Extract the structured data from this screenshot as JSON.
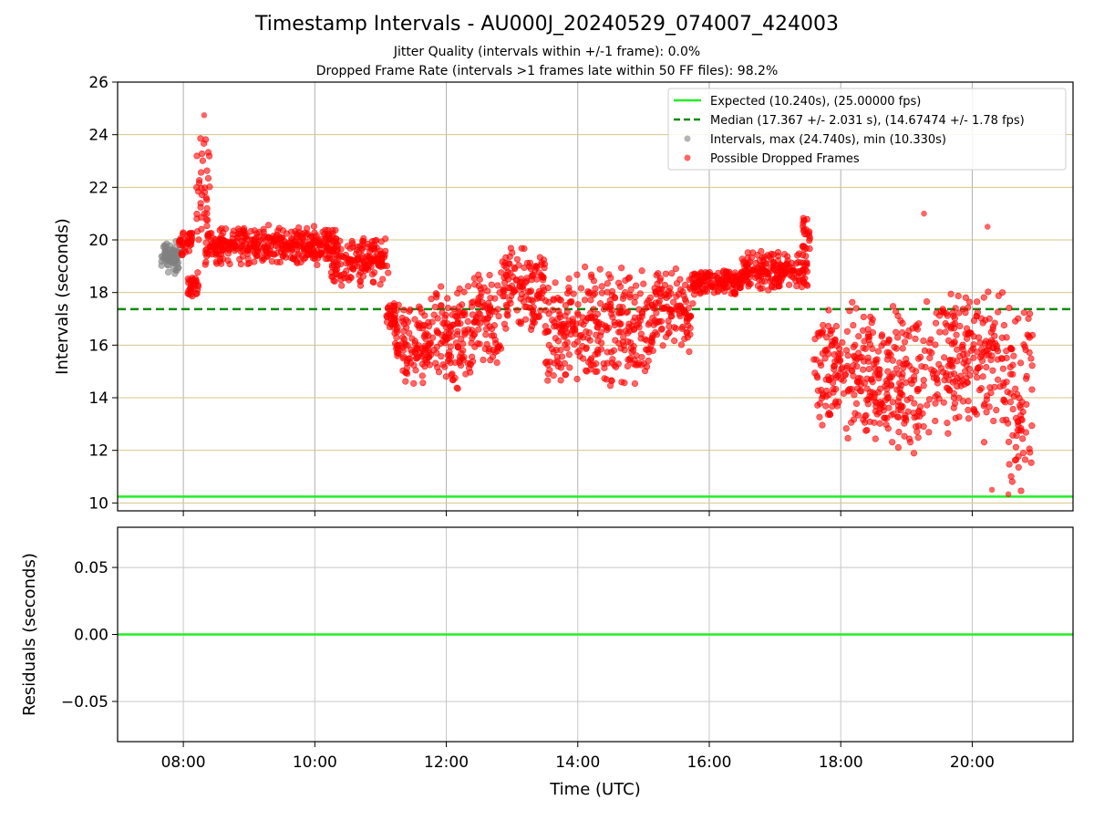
{
  "figure": {
    "title": "Timestamp Intervals - AU000J_20240529_074007_424003",
    "subtitle_1": "Jitter Quality (intervals within +/-1 frame): 0.0%",
    "subtitle_2": "Dropped Frame Rate (intervals >1 frames late within 50 FF files): 98.2%"
  },
  "chart_data": [
    {
      "type": "scatter",
      "xlabel": "",
      "ylabel": "Intervals (seconds)",
      "xlim": [
        "07:00",
        "21:32"
      ],
      "ylim": [
        9.7,
        26
      ],
      "yticks": [
        10,
        12,
        14,
        16,
        18,
        20,
        22,
        24,
        26
      ],
      "ytick_labels": [
        "10",
        "12",
        "14",
        "16",
        "18",
        "20",
        "22",
        "24",
        "26"
      ],
      "xticks": [
        "08:00",
        "10:00",
        "12:00",
        "14:00",
        "16:00",
        "18:00",
        "20:00"
      ],
      "grid": true,
      "legend_position": "top-right",
      "reference_lines": [
        {
          "name": "Expected (10.240s), (25.00000 fps)",
          "value": 10.24,
          "style": "solid",
          "color": "#22ee22"
        },
        {
          "name": "Median (17.367 +/- 2.031 s), (14.67474 +/- 1.78 fps)",
          "value": 17.367,
          "style": "dashed",
          "color": "#118811"
        }
      ],
      "series": [
        {
          "name": "Intervals, max (24.740s), min (10.330s)",
          "color": "#808080",
          "description_ranges": [
            {
              "x_start": "07:40",
              "x_end": "07:56",
              "y_min": 18.6,
              "y_max": 20.1
            }
          ]
        },
        {
          "name": "Possible Dropped Frames",
          "color": "#ff0000",
          "description_ranges": [
            {
              "x_start": "07:56",
              "x_end": "08:08",
              "y_min": 19.3,
              "y_max": 20.5
            },
            {
              "x_start": "08:04",
              "x_end": "08:14",
              "y_min": 17.8,
              "y_max": 18.8
            },
            {
              "x_start": "08:12",
              "x_end": "08:24",
              "y_min": 19.0,
              "y_max": 24.7
            },
            {
              "x_start": "08:20",
              "x_end": "10:20",
              "y_min": 19.0,
              "y_max": 20.6
            },
            {
              "x_start": "10:15",
              "x_end": "11:07",
              "y_min": 18.2,
              "y_max": 20.2
            },
            {
              "x_start": "11:05",
              "x_end": "11:15",
              "y_min": 16.4,
              "y_max": 17.8
            },
            {
              "x_start": "11:12",
              "x_end": "11:45",
              "y_min": 14.2,
              "y_max": 17.6
            },
            {
              "x_start": "11:45",
              "x_end": "12:25",
              "y_min": 14.1,
              "y_max": 18.5
            },
            {
              "x_start": "12:25",
              "x_end": "12:50",
              "y_min": 15.0,
              "y_max": 19.0
            },
            {
              "x_start": "12:50",
              "x_end": "13:30",
              "y_min": 16.4,
              "y_max": 19.9
            },
            {
              "x_start": "13:30",
              "x_end": "14:30",
              "y_min": 14.2,
              "y_max": 19.2
            },
            {
              "x_start": "14:30",
              "x_end": "15:10",
              "y_min": 14.1,
              "y_max": 19.3
            },
            {
              "x_start": "15:10",
              "x_end": "15:45",
              "y_min": 15.6,
              "y_max": 19.1
            },
            {
              "x_start": "15:45",
              "x_end": "16:30",
              "y_min": 17.8,
              "y_max": 19.0
            },
            {
              "x_start": "16:30",
              "x_end": "17:30",
              "y_min": 18.0,
              "y_max": 19.6
            },
            {
              "x_start": "17:25",
              "x_end": "17:32",
              "y_min": 19.5,
              "y_max": 21.0
            },
            {
              "x_start": "17:35",
              "x_end": "18:30",
              "y_min": 12.4,
              "y_max": 17.8
            },
            {
              "x_start": "18:30",
              "x_end": "19:30",
              "y_min": 11.6,
              "y_max": 17.8
            },
            {
              "x_start": "19:30",
              "x_end": "20:30",
              "y_min": 12.2,
              "y_max": 18.5
            },
            {
              "x_start": "20:30",
              "x_end": "20:55",
              "y_min": 10.3,
              "y_max": 17.8
            }
          ],
          "outliers": [
            {
              "x": "19:16",
              "y": 21.0
            },
            {
              "x": "20:14",
              "y": 20.5
            },
            {
              "x": "20:18",
              "y": 10.5
            },
            {
              "x": "20:33",
              "y": 10.33
            },
            {
              "x": "08:19",
              "y": 24.74
            }
          ]
        }
      ]
    },
    {
      "type": "line",
      "xlabel": "Time (UTC)",
      "ylabel": "Residuals (seconds)",
      "xlim": [
        "07:00",
        "21:32"
      ],
      "ylim": [
        -0.08,
        0.08
      ],
      "yticks": [
        0.05,
        0.0,
        -0.05
      ],
      "ytick_labels": [
        "0.05",
        "0.00",
        "−0.05"
      ],
      "xticks": [
        "08:00",
        "10:00",
        "12:00",
        "14:00",
        "16:00",
        "18:00",
        "20:00"
      ],
      "grid": true,
      "series": [
        {
          "color": "#22ee22",
          "x": [
            "07:00",
            "21:32"
          ],
          "y": [
            0.0,
            0.0
          ]
        }
      ]
    }
  ]
}
